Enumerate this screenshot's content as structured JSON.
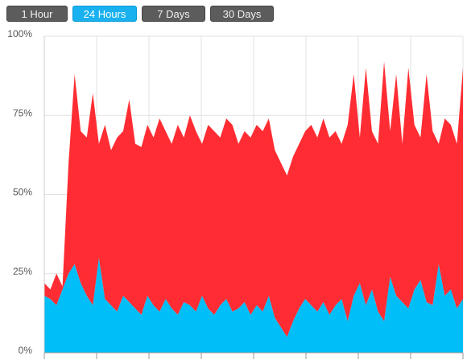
{
  "controls": {
    "buttons": [
      "1 Hour",
      "24 Hours",
      "7 Days",
      "30 Days"
    ],
    "selected": 1
  },
  "chart_data": {
    "type": "stacked-area",
    "ylim": [
      0,
      100
    ],
    "yticks": [
      {
        "value": 0,
        "label": "0%"
      },
      {
        "value": 25,
        "label": "25%"
      },
      {
        "value": 50,
        "label": "50%"
      },
      {
        "value": 75,
        "label": "75%"
      },
      {
        "value": 100,
        "label": "100%"
      }
    ],
    "grid": true,
    "series": [
      {
        "color": "#00bef8",
        "values": [
          18,
          17,
          15,
          20,
          25,
          28,
          22,
          18,
          15,
          30,
          17,
          15,
          13,
          18,
          16,
          14,
          12,
          18,
          15,
          13,
          17,
          14,
          12,
          16,
          15,
          13,
          18,
          14,
          12,
          15,
          17,
          13,
          14,
          16,
          12,
          15,
          13,
          18,
          11,
          8,
          5,
          10,
          14,
          17,
          15,
          13,
          16,
          12,
          15,
          17,
          10,
          18,
          22,
          15,
          20,
          13,
          10,
          24,
          18,
          16,
          14,
          20,
          23,
          16,
          15,
          28,
          18,
          20,
          14,
          17
        ]
      },
      {
        "color": "#ff2d33",
        "values": [
          4,
          3,
          10,
          1,
          35,
          60,
          48,
          50,
          67,
          36,
          55,
          49,
          55,
          52,
          64,
          52,
          53,
          54,
          53,
          61,
          53,
          52,
          60,
          52,
          60,
          57,
          48,
          58,
          58,
          53,
          57,
          59,
          52,
          54,
          56,
          57,
          57,
          56,
          53,
          52,
          51,
          52,
          52,
          53,
          57,
          55,
          58,
          56,
          55,
          49,
          62,
          70,
          46,
          75,
          50,
          53,
          82,
          46,
          70,
          50,
          76,
          52,
          45,
          72,
          55,
          38,
          56,
          52,
          52,
          73
        ]
      }
    ]
  }
}
